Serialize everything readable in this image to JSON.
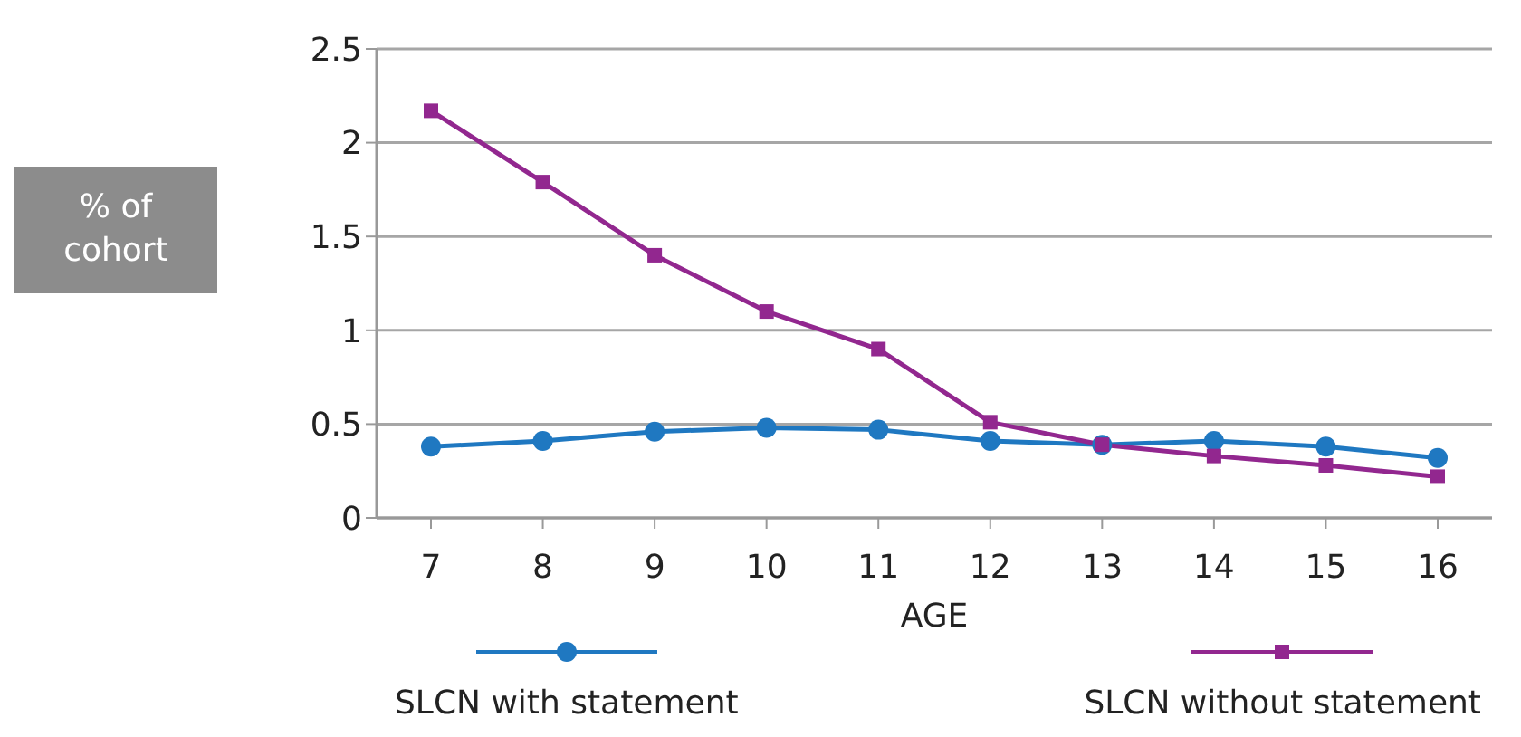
{
  "chart_data": {
    "type": "line",
    "xlabel": "AGE",
    "ylabel": "% of cohort",
    "categories": [
      "7",
      "8",
      "9",
      "10",
      "11",
      "12",
      "13",
      "14",
      "15",
      "16"
    ],
    "series": [
      {
        "name": "SLCN with statement",
        "color": "#1f78c1",
        "marker": "circle",
        "values": [
          0.38,
          0.41,
          0.46,
          0.48,
          0.47,
          0.41,
          0.39,
          0.41,
          0.38,
          0.32
        ]
      },
      {
        "name": "SLCN without statement",
        "color": "#92278f",
        "marker": "square",
        "values": [
          2.17,
          1.79,
          1.4,
          1.1,
          0.9,
          0.51,
          0.39,
          0.33,
          0.28,
          0.22
        ]
      }
    ],
    "ylim": [
      0,
      2.5
    ],
    "yticks": [
      0,
      0.5,
      1,
      1.5,
      2,
      2.5
    ],
    "grid": "y",
    "legend": "bottom"
  }
}
